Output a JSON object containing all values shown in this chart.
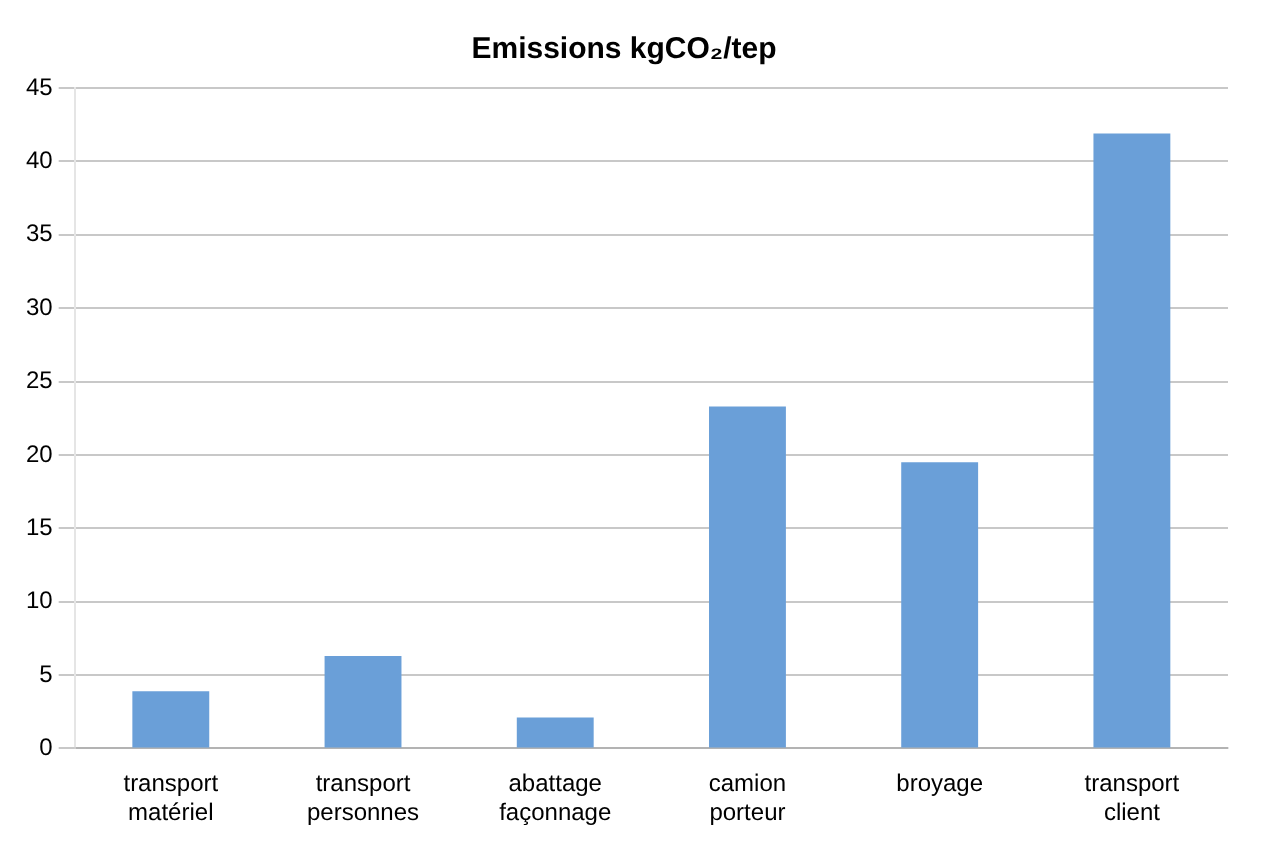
{
  "chart_data": {
    "type": "bar",
    "title": "Emissions kgCO₂/tep",
    "categories": [
      "transport matériel",
      "transport personnes",
      "abattage façonnage",
      "camion porteur",
      "broyage",
      "transport client"
    ],
    "values": [
      3.9,
      6.3,
      2.1,
      23.3,
      19.5,
      41.9
    ],
    "color": "#6a9fd8",
    "ylim": [
      0,
      45
    ],
    "yticks": [
      0,
      5,
      10,
      15,
      20,
      25,
      30,
      35,
      40,
      45
    ],
    "grid": "y",
    "legend": false
  }
}
